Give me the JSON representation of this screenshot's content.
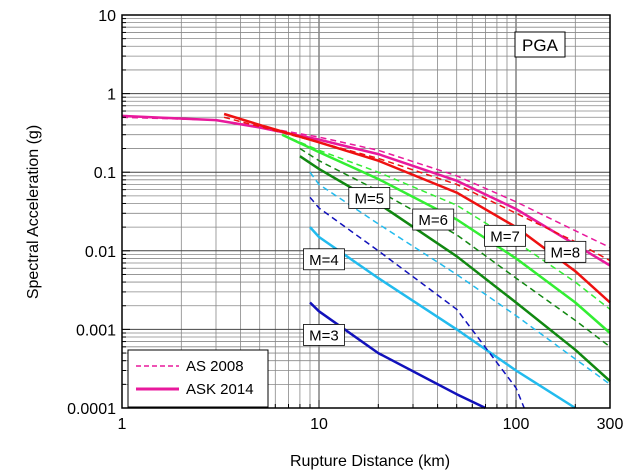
{
  "chart_data": {
    "type": "line",
    "title": "",
    "annotation": "PGA",
    "xlabel": "Rupture Distance (km)",
    "ylabel": "Spectral Acceleration (g)",
    "xscale": "log",
    "yscale": "log",
    "xlim": [
      1,
      300
    ],
    "ylim": [
      0.0001,
      10
    ],
    "xtick_labels": [
      "1",
      "10",
      "100",
      "300"
    ],
    "ytick_labels": [
      "0.0001",
      "0.001",
      "0.01",
      "0.1",
      "1",
      "10"
    ],
    "grid": true,
    "legend": {
      "position": "bottom-left",
      "entries": [
        {
          "name": "AS 2008",
          "style": "dashed",
          "color": "#e8199c"
        },
        {
          "name": "ASK 2014",
          "style": "solid",
          "color": "#e8199c"
        }
      ]
    },
    "magnitude_labels": [
      "M=3",
      "M=4",
      "M=5",
      "M=6",
      "M=7",
      "M=8"
    ],
    "series": [
      {
        "model": "ASK 2014",
        "magnitude": 8,
        "color": "#e8199c",
        "style": "solid",
        "x": [
          1,
          3,
          5,
          10,
          20,
          50,
          100,
          200,
          300
        ],
        "y": [
          0.52,
          0.46,
          0.37,
          0.26,
          0.17,
          0.078,
          0.034,
          0.012,
          0.0065
        ]
      },
      {
        "model": "AS 2008",
        "magnitude": 8,
        "color": "#e8199c",
        "style": "dashed",
        "x": [
          1,
          3,
          5,
          10,
          20,
          50,
          100,
          200,
          300
        ],
        "y": [
          0.5,
          0.46,
          0.38,
          0.28,
          0.19,
          0.09,
          0.042,
          0.018,
          0.011
        ]
      },
      {
        "model": "ASK 2014",
        "magnitude": 7,
        "color": "#ee1111",
        "style": "solid",
        "x": [
          3.3,
          5,
          10,
          20,
          50,
          100,
          200,
          300
        ],
        "y": [
          0.55,
          0.4,
          0.24,
          0.14,
          0.055,
          0.02,
          0.0055,
          0.0022
        ]
      },
      {
        "model": "AS 2008",
        "magnitude": 7,
        "color": "#ee1111",
        "style": "dashed",
        "x": [
          3.3,
          5,
          10,
          20,
          50,
          100,
          200,
          300
        ],
        "y": [
          0.5,
          0.38,
          0.24,
          0.15,
          0.07,
          0.03,
          0.013,
          0.0075
        ]
      },
      {
        "model": "ASK 2014",
        "magnitude": 6,
        "color": "#33ee33",
        "style": "solid",
        "x": [
          6.5,
          10,
          20,
          50,
          100,
          200,
          300
        ],
        "y": [
          0.3,
          0.18,
          0.082,
          0.025,
          0.008,
          0.0022,
          0.0009
        ]
      },
      {
        "model": "AS 2008",
        "magnitude": 6,
        "color": "#33ee33",
        "style": "dashed",
        "x": [
          6.5,
          10,
          20,
          50,
          100,
          200,
          300
        ],
        "y": [
          0.3,
          0.19,
          0.1,
          0.038,
          0.013,
          0.004,
          0.0018
        ]
      },
      {
        "model": "ASK 2014",
        "magnitude": 5,
        "color": "#118811",
        "style": "solid",
        "x": [
          8,
          10,
          20,
          50,
          100,
          200,
          300
        ],
        "y": [
          0.16,
          0.11,
          0.04,
          0.0085,
          0.0022,
          0.00055,
          0.00022
        ]
      },
      {
        "model": "AS 2008",
        "magnitude": 5,
        "color": "#118811",
        "style": "dashed",
        "x": [
          8,
          10,
          20,
          50,
          100,
          200,
          300
        ],
        "y": [
          0.2,
          0.14,
          0.058,
          0.016,
          0.0045,
          0.0013,
          0.0006
        ]
      },
      {
        "model": "ASK 2014",
        "magnitude": 4,
        "color": "#22bbee",
        "style": "solid",
        "x": [
          9,
          10,
          20,
          50,
          100,
          200
        ],
        "y": [
          0.02,
          0.015,
          0.0045,
          0.001,
          0.0003,
          0.0001
        ]
      },
      {
        "model": "AS 2008",
        "magnitude": 4,
        "color": "#22bbee",
        "style": "dashed",
        "x": [
          9,
          10,
          20,
          50,
          100,
          200,
          300
        ],
        "y": [
          0.1,
          0.07,
          0.022,
          0.005,
          0.0015,
          0.00042,
          0.0002
        ]
      },
      {
        "model": "ASK 2014",
        "magnitude": 3,
        "color": "#1111bb",
        "style": "solid",
        "x": [
          9,
          10,
          20,
          50,
          70
        ],
        "y": [
          0.0022,
          0.0017,
          0.0005,
          0.00015,
          0.0001
        ]
      },
      {
        "model": "AS 2008",
        "magnitude": 3,
        "color": "#1111bb",
        "style": "dashed",
        "x": [
          9,
          10,
          20,
          50,
          100,
          110
        ],
        "y": [
          0.048,
          0.035,
          0.01,
          0.0018,
          0.00018,
          0.0001
        ]
      }
    ]
  }
}
